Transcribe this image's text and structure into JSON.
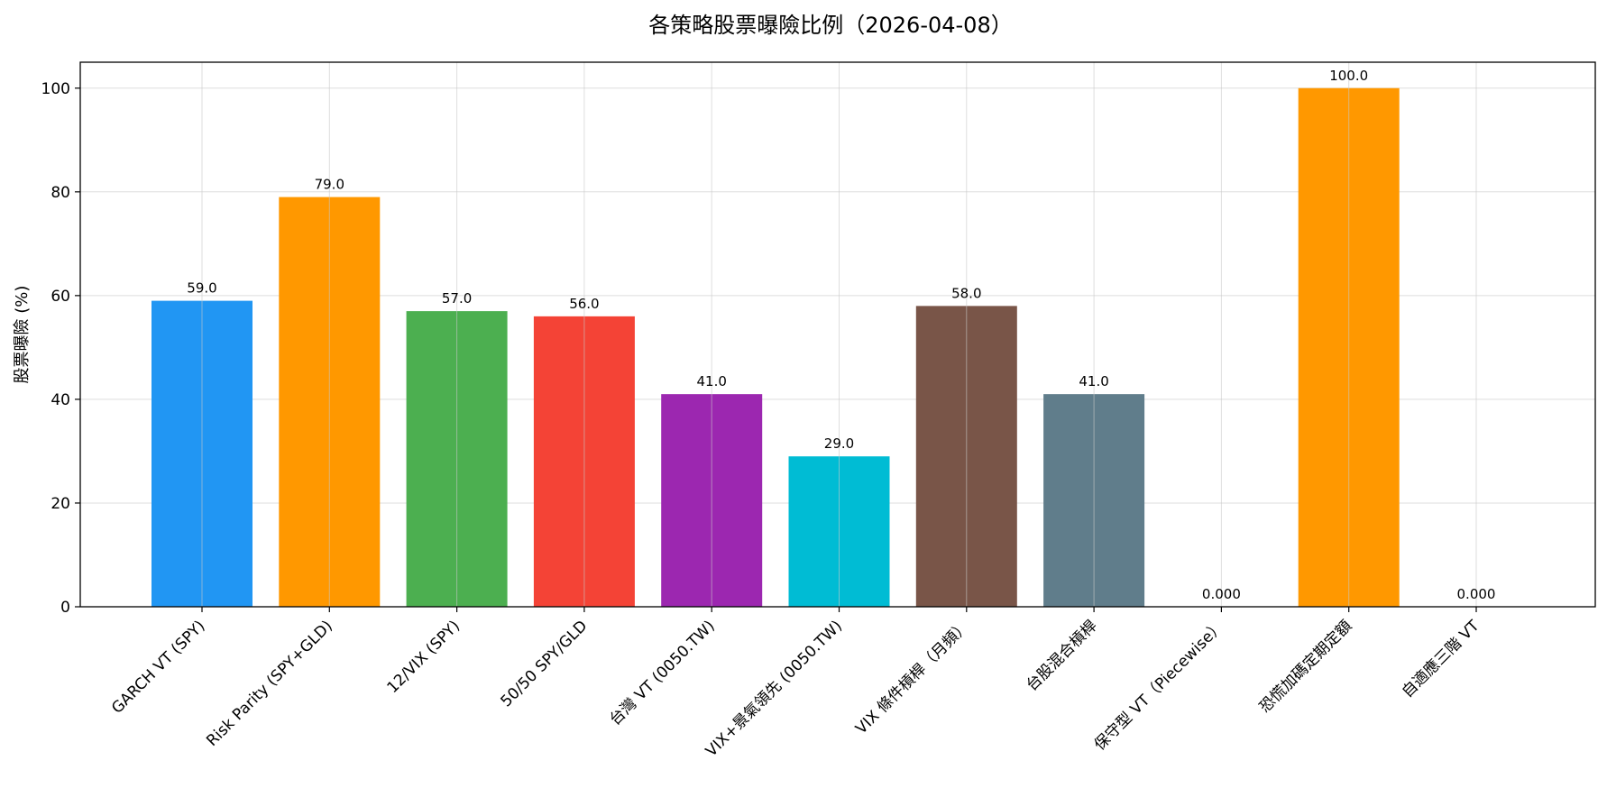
{
  "chart_data": {
    "type": "bar",
    "title": "各策略股票曝險比例（2026-04-08）",
    "xlabel": "",
    "ylabel": "股票曝險 (%)",
    "ylim": [
      0,
      105
    ],
    "yticks": [
      0,
      20,
      40,
      60,
      80,
      100
    ],
    "grid": true,
    "categories": [
      "GARCH VT (SPY)",
      "Risk Parity (SPY+GLD)",
      "12/VIX (SPY)",
      "50/50 SPY/GLD",
      "台灣 VT (0050.TW)",
      "VIX+景氣領先 (0050.TW)",
      "VIX 條件槓桿（月頻）",
      "台股混合槓桿",
      "保守型 VT（Piecewise）",
      "恐慌加碼定期定額",
      "自適應三階 VT"
    ],
    "values": [
      59.0,
      79.0,
      57.0,
      56.0,
      41.0,
      29.0,
      58.0,
      41.0,
      0.0,
      100.0,
      0.0
    ],
    "value_labels": [
      "59.0",
      "79.0",
      "57.0",
      "56.0",
      "41.0",
      "29.0",
      "58.0",
      "41.0",
      "0.000",
      "100.0",
      "0.000"
    ],
    "colors": [
      "#2196F3",
      "#FF9800",
      "#4CAF50",
      "#F44336",
      "#9C27B0",
      "#00BCD4",
      "#795548",
      "#607D8B",
      "#FFC107",
      "#FF9800",
      "#E91E63"
    ]
  }
}
